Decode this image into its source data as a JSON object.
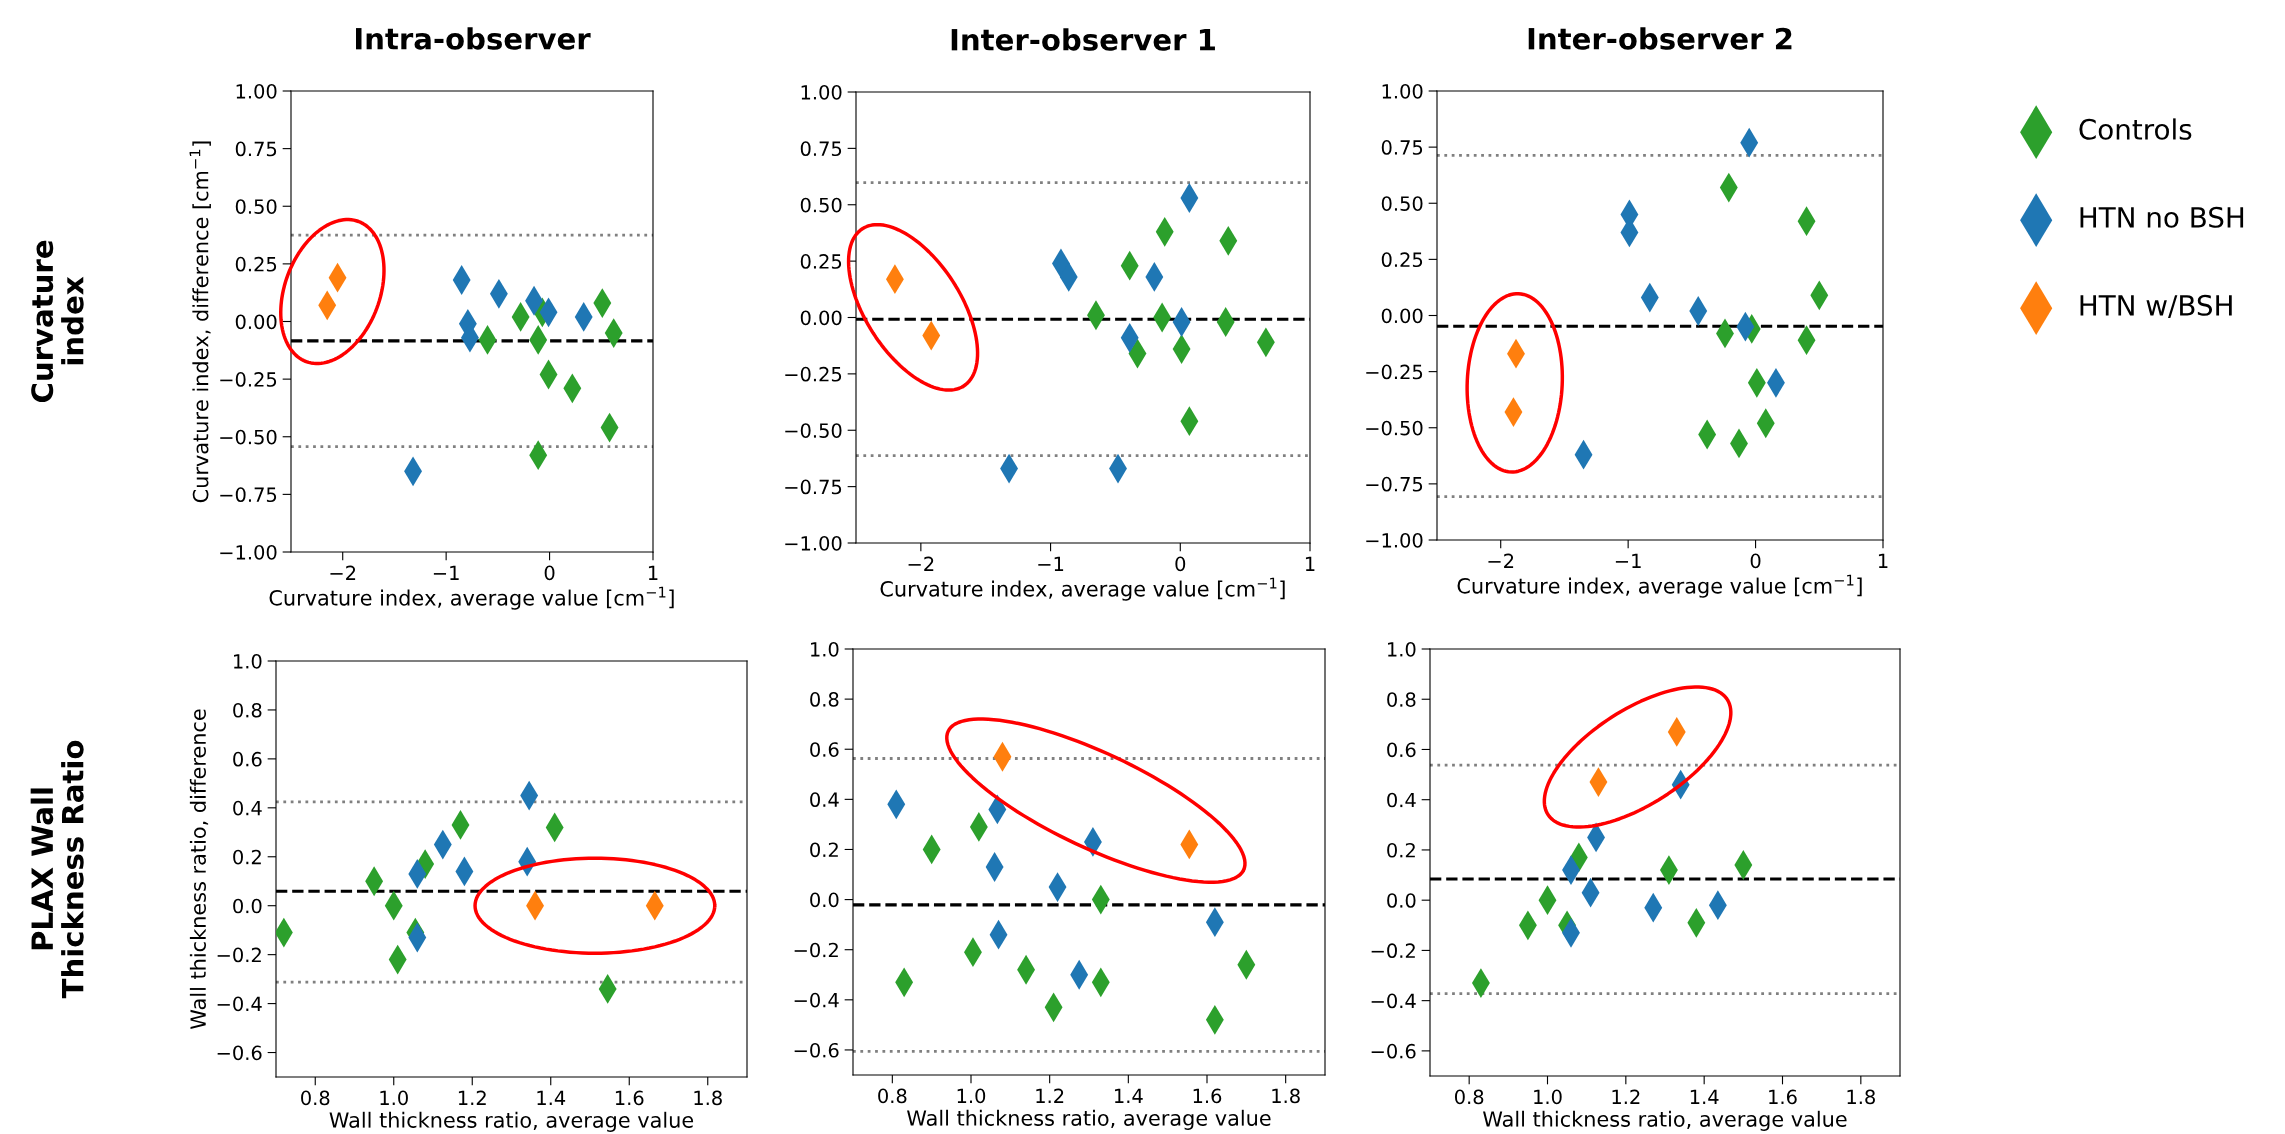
{
  "chart_data": [
    {
      "type": "scatter",
      "title": "Intra-observer",
      "xlabel": "Curvature index, average value [cm$^{−1}$]",
      "ylabel": "Curvature index, difference [cm$^{−1}$]",
      "annotations": [
        "Curvature\nindex"
      ],
      "marker": "diamond",
      "grid": false,
      "legend": false,
      "xlim": [
        -2.5,
        1
      ],
      "ylim": [
        -1,
        1
      ],
      "xticks": [
        {
          "value": -2,
          "label": "−2"
        },
        {
          "value": -1,
          "label": "−1"
        },
        0,
        1
      ],
      "yticks": [
        {
          "value": -1,
          "label": "−1.00"
        },
        {
          "value": -0.75,
          "label": "−0.75"
        },
        {
          "value": -0.5,
          "label": "−0.50"
        },
        {
          "value": -0.25,
          "label": "−0.25"
        },
        {
          "value": 0,
          "label": "0.00"
        },
        {
          "value": 0.25,
          "label": "0.25"
        },
        {
          "value": 0.5,
          "label": "0.50"
        },
        {
          "value": 0.75,
          "label": "0.75"
        },
        {
          "value": 1,
          "label": "1.00"
        }
      ],
      "ref_lines": [
        {
          "axis": "y",
          "value": -0.084,
          "color": "#000000",
          "line_style": "dashed"
        },
        {
          "axis": "y",
          "value": 0.375,
          "color": "#808080",
          "line_style": "dotted"
        },
        {
          "axis": "y",
          "value": -0.543,
          "color": "#808080",
          "line_style": "dotted"
        }
      ],
      "series": [
        {
          "color": "#2ca02c",
          "x": [
            -0.6,
            -0.28,
            -0.07,
            -0.11,
            -0.01,
            0.22,
            -0.11,
            0.51,
            0.58,
            0.62
          ],
          "values": [
            -0.08,
            0.02,
            0.04,
            -0.08,
            -0.23,
            -0.29,
            -0.58,
            0.08,
            -0.46,
            -0.05
          ]
        },
        {
          "color": "#1f77b4",
          "x": [
            -0.85,
            -0.79,
            -0.77,
            -0.49,
            -0.15,
            -0.01,
            0.33,
            -1.32
          ],
          "values": [
            0.18,
            -0.01,
            -0.07,
            0.12,
            0.09,
            0.04,
            0.02,
            -0.65
          ]
        },
        {
          "color": "#ff7f0e",
          "x": [
            -2.05,
            -2.15
          ],
          "values": [
            0.19,
            0.07
          ]
        }
      ]
    },
    {
      "type": "scatter",
      "title": "Inter-observer 1",
      "xlabel": "Curvature index, average value [cm$^{−1}$]",
      "marker": "diamond",
      "grid": false,
      "legend": false,
      "xlim": [
        -2.5,
        1
      ],
      "ylim": [
        -1,
        1
      ],
      "xticks": [
        {
          "value": -2,
          "label": "−2"
        },
        {
          "value": -1,
          "label": "−1"
        },
        0,
        1
      ],
      "yticks": [
        {
          "value": -1,
          "label": "−1.00"
        },
        {
          "value": -0.75,
          "label": "−0.75"
        },
        {
          "value": -0.5,
          "label": "−0.50"
        },
        {
          "value": -0.25,
          "label": "−0.25"
        },
        {
          "value": 0,
          "label": "0.00"
        },
        {
          "value": 0.25,
          "label": "0.25"
        },
        {
          "value": 0.5,
          "label": "0.50"
        },
        {
          "value": 0.75,
          "label": "0.75"
        },
        {
          "value": 1,
          "label": "1.00"
        }
      ],
      "ref_lines": [
        {
          "axis": "y",
          "value": -0.008,
          "color": "#000000",
          "line_style": "dashed"
        },
        {
          "axis": "y",
          "value": 0.598,
          "color": "#808080",
          "line_style": "dotted"
        },
        {
          "axis": "y",
          "value": -0.613,
          "color": "#808080",
          "line_style": "dotted"
        }
      ],
      "series": [
        {
          "color": "#2ca02c",
          "x": [
            -0.65,
            -0.39,
            -0.12,
            -0.14,
            -0.33,
            0.01,
            0.07,
            0.37,
            0.35,
            0.66
          ],
          "values": [
            0.01,
            0.23,
            0.38,
            0.0,
            -0.16,
            -0.14,
            -0.46,
            0.34,
            -0.02,
            -0.11
          ]
        },
        {
          "color": "#1f77b4",
          "x": [
            -0.92,
            -0.86,
            -0.2,
            0.07,
            0.01,
            -0.39,
            -1.32,
            -0.48
          ],
          "values": [
            0.24,
            0.18,
            0.18,
            0.53,
            -0.02,
            -0.09,
            -0.67,
            -0.67
          ]
        },
        {
          "color": "#ff7f0e",
          "x": [
            -2.2,
            -1.92
          ],
          "values": [
            0.17,
            -0.08
          ]
        }
      ]
    },
    {
      "type": "scatter",
      "title": "Inter-observer 2",
      "xlabel": "Curvature index, average value [cm$^{−1}$]",
      "marker": "diamond",
      "grid": false,
      "legend": "right",
      "xlim": [
        -2.5,
        1
      ],
      "ylim": [
        -1,
        1
      ],
      "xticks": [
        {
          "value": -2,
          "label": "−2"
        },
        {
          "value": -1,
          "label": "−1"
        },
        0,
        1
      ],
      "yticks": [
        {
          "value": -1,
          "label": "−1.00"
        },
        {
          "value": -0.75,
          "label": "−0.75"
        },
        {
          "value": -0.5,
          "label": "−0.50"
        },
        {
          "value": -0.25,
          "label": "−0.25"
        },
        {
          "value": 0,
          "label": "0.00"
        },
        {
          "value": 0.25,
          "label": "0.25"
        },
        {
          "value": 0.5,
          "label": "0.50"
        },
        {
          "value": 0.75,
          "label": "0.75"
        },
        {
          "value": 1,
          "label": "1.00"
        }
      ],
      "ref_lines": [
        {
          "axis": "y",
          "value": -0.048,
          "color": "#000000",
          "line_style": "dashed"
        },
        {
          "axis": "y",
          "value": 0.713,
          "color": "#808080",
          "line_style": "dotted"
        },
        {
          "axis": "y",
          "value": -0.807,
          "color": "#808080",
          "line_style": "dotted"
        }
      ],
      "series": [
        {
          "name": "Controls",
          "color": "#2ca02c",
          "x": [
            -0.21,
            0.4,
            0.5,
            -0.24,
            -0.03,
            0.4,
            0.01,
            0.08,
            -0.38,
            -0.13
          ],
          "values": [
            0.57,
            0.42,
            0.09,
            -0.08,
            -0.06,
            -0.11,
            -0.3,
            -0.48,
            -0.53,
            -0.57
          ]
        },
        {
          "name": "HTN no BSH",
          "color": "#1f77b4",
          "x": [
            -0.05,
            -0.99,
            -0.99,
            -0.83,
            -0.45,
            -0.08,
            0.16,
            -1.35
          ],
          "values": [
            0.77,
            0.45,
            0.37,
            0.08,
            0.02,
            -0.05,
            -0.3,
            -0.62
          ]
        },
        {
          "name": "HTN w/BSH",
          "color": "#ff7f0e",
          "x": [
            -1.88,
            -1.9
          ],
          "values": [
            -0.17,
            -0.43
          ]
        }
      ]
    },
    {
      "type": "scatter",
      "xlabel": "Wall thickness ratio, average value",
      "ylabel": "Wall thickness ratio, difference",
      "annotations": [
        "PLAX Wall\nThickness Ratio"
      ],
      "marker": "diamond",
      "grid": false,
      "legend": false,
      "xlim": [
        0.7,
        1.9
      ],
      "ylim": [
        -0.7,
        1.0
      ],
      "xticks": [
        {
          "value": 0.8,
          "label": "0.8"
        },
        {
          "value": 1.0,
          "label": "1.0"
        },
        {
          "value": 1.2,
          "label": "1.2"
        },
        {
          "value": 1.4,
          "label": "1.4"
        },
        {
          "value": 1.6,
          "label": "1.6"
        },
        {
          "value": 1.8,
          "label": "1.8"
        }
      ],
      "yticks": [
        {
          "value": -0.6,
          "label": "−0.6"
        },
        {
          "value": -0.4,
          "label": "−0.4"
        },
        {
          "value": -0.2,
          "label": "−0.2"
        },
        {
          "value": 0,
          "label": "0.0"
        },
        {
          "value": 0.2,
          "label": "0.2"
        },
        {
          "value": 0.4,
          "label": "0.4"
        },
        {
          "value": 0.6,
          "label": "0.6"
        },
        {
          "value": 0.8,
          "label": "0.8"
        },
        {
          "value": 1.0,
          "label": "1.0"
        }
      ],
      "ref_lines": [
        {
          "axis": "y",
          "value": 0.059,
          "color": "#000000",
          "line_style": "dashed"
        },
        {
          "axis": "y",
          "value": 0.424,
          "color": "#808080",
          "line_style": "dotted"
        },
        {
          "axis": "y",
          "value": -0.312,
          "color": "#808080",
          "line_style": "dotted"
        }
      ],
      "series": [
        {
          "color": "#2ca02c",
          "x": [
            0.72,
            0.95,
            1.0,
            1.01,
            1.055,
            1.08,
            1.17,
            1.41,
            1.545
          ],
          "values": [
            -0.11,
            0.1,
            0.0,
            -0.22,
            -0.11,
            0.17,
            0.33,
            0.32,
            -0.34
          ]
        },
        {
          "color": "#1f77b4",
          "x": [
            1.06,
            1.06,
            1.125,
            1.18,
            1.345,
            1.34
          ],
          "values": [
            0.13,
            -0.13,
            0.25,
            0.14,
            0.45,
            0.18
          ]
        },
        {
          "color": "#ff7f0e",
          "x": [
            1.36,
            1.665
          ],
          "values": [
            0.0,
            0.0
          ]
        }
      ]
    },
    {
      "type": "scatter",
      "xlabel": "Wall thickness ratio, average value",
      "marker": "diamond",
      "grid": false,
      "legend": false,
      "xlim": [
        0.7,
        1.9
      ],
      "ylim": [
        -0.7,
        1.0
      ],
      "xticks": [
        {
          "value": 0.8,
          "label": "0.8"
        },
        {
          "value": 1.0,
          "label": "1.0"
        },
        {
          "value": 1.2,
          "label": "1.2"
        },
        {
          "value": 1.4,
          "label": "1.4"
        },
        {
          "value": 1.6,
          "label": "1.6"
        },
        {
          "value": 1.8,
          "label": "1.8"
        }
      ],
      "yticks": [
        {
          "value": -0.6,
          "label": "−0.6"
        },
        {
          "value": -0.4,
          "label": "−0.4"
        },
        {
          "value": -0.2,
          "label": "−0.2"
        },
        {
          "value": 0,
          "label": "0.0"
        },
        {
          "value": 0.2,
          "label": "0.2"
        },
        {
          "value": 0.4,
          "label": "0.4"
        },
        {
          "value": 0.6,
          "label": "0.6"
        },
        {
          "value": 0.8,
          "label": "0.8"
        },
        {
          "value": 1.0,
          "label": "1.0"
        }
      ],
      "ref_lines": [
        {
          "axis": "y",
          "value": -0.021,
          "color": "#000000",
          "line_style": "dashed"
        },
        {
          "axis": "y",
          "value": 0.563,
          "color": "#808080",
          "line_style": "dotted"
        },
        {
          "axis": "y",
          "value": -0.606,
          "color": "#808080",
          "line_style": "dotted"
        }
      ],
      "series": [
        {
          "color": "#2ca02c",
          "x": [
            0.83,
            0.9,
            1.02,
            1.005,
            1.14,
            1.21,
            1.33,
            1.33,
            1.62,
            1.7
          ],
          "values": [
            -0.33,
            0.2,
            0.29,
            -0.21,
            -0.28,
            -0.43,
            0.0,
            -0.33,
            -0.48,
            -0.26
          ]
        },
        {
          "color": "#1f77b4",
          "x": [
            0.81,
            1.067,
            1.06,
            1.22,
            1.31,
            1.07,
            1.275,
            1.62
          ],
          "values": [
            0.38,
            0.36,
            0.13,
            0.05,
            0.23,
            -0.14,
            -0.3,
            -0.09
          ]
        },
        {
          "color": "#ff7f0e",
          "x": [
            1.08,
            1.555
          ],
          "values": [
            0.57,
            0.22
          ]
        }
      ]
    },
    {
      "type": "scatter",
      "xlabel": "Wall thickness ratio, average value",
      "marker": "diamond",
      "grid": false,
      "legend": false,
      "xlim": [
        0.7,
        1.9
      ],
      "ylim": [
        -0.7,
        1.0
      ],
      "xticks": [
        {
          "value": 0.8,
          "label": "0.8"
        },
        {
          "value": 1.0,
          "label": "1.0"
        },
        {
          "value": 1.2,
          "label": "1.2"
        },
        {
          "value": 1.4,
          "label": "1.4"
        },
        {
          "value": 1.6,
          "label": "1.6"
        },
        {
          "value": 1.8,
          "label": "1.8"
        }
      ],
      "yticks": [
        {
          "value": -0.6,
          "label": "−0.6"
        },
        {
          "value": -0.4,
          "label": "−0.4"
        },
        {
          "value": -0.2,
          "label": "−0.2"
        },
        {
          "value": 0,
          "label": "0.0"
        },
        {
          "value": 0.2,
          "label": "0.2"
        },
        {
          "value": 0.4,
          "label": "0.4"
        },
        {
          "value": 0.6,
          "label": "0.6"
        },
        {
          "value": 0.8,
          "label": "0.8"
        },
        {
          "value": 1.0,
          "label": "1.0"
        }
      ],
      "ref_lines": [
        {
          "axis": "y",
          "value": 0.084,
          "color": "#000000",
          "line_style": "dashed"
        },
        {
          "axis": "y",
          "value": 0.538,
          "color": "#808080",
          "line_style": "dotted"
        },
        {
          "axis": "y",
          "value": -0.372,
          "color": "#808080",
          "line_style": "dotted"
        }
      ],
      "series": [
        {
          "color": "#2ca02c",
          "x": [
            1.08,
            1.0,
            0.95,
            1.05,
            1.31,
            1.5,
            1.38,
            0.83
          ],
          "values": [
            0.17,
            0.0,
            -0.1,
            -0.1,
            0.12,
            0.14,
            -0.09,
            -0.33
          ]
        },
        {
          "color": "#1f77b4",
          "x": [
            1.34,
            1.124,
            1.06,
            1.11,
            1.06,
            1.27,
            1.435
          ],
          "values": [
            0.46,
            0.25,
            0.12,
            0.03,
            -0.13,
            -0.03,
            -0.02
          ]
        },
        {
          "color": "#ff7f0e",
          "x": [
            1.13,
            1.33
          ],
          "values": [
            0.47,
            0.67
          ]
        }
      ]
    }
  ]
}
